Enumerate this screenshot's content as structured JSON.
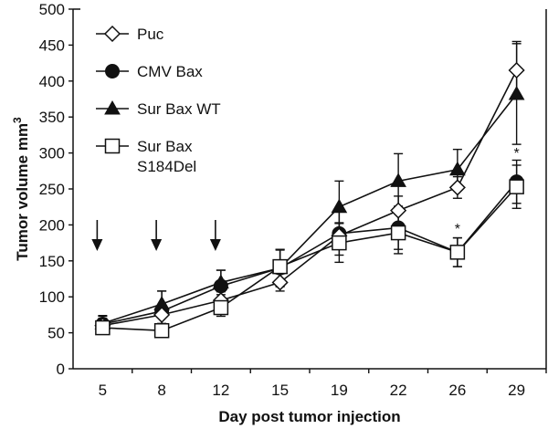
{
  "chart_data": {
    "type": "line",
    "title": "",
    "xlabel": "Day post tumor injection",
    "ylabel": "Tumor volume mm",
    "ylabel_superscript": "3",
    "categories": [
      "5",
      "8",
      "12",
      "15",
      "19",
      "22",
      "26",
      "29"
    ],
    "ylim": [
      0,
      500
    ],
    "yticks": [
      0,
      50,
      100,
      150,
      200,
      250,
      300,
      350,
      400,
      450,
      500
    ],
    "grid": false,
    "legend_position": "top-left",
    "series": [
      {
        "name": "Puc",
        "marker": "diamond-open",
        "values": [
          60,
          75,
          95,
          120,
          185,
          220,
          252,
          415
        ],
        "errors": [
          10,
          12,
          12,
          12,
          18,
          20,
          15,
          40
        ]
      },
      {
        "name": "CMV Bax",
        "marker": "circle-filled",
        "values": [
          62,
          80,
          115,
          140,
          188,
          196,
          162,
          260
        ],
        "errors": [
          12,
          28,
          22,
          25,
          30,
          30,
          20,
          30
        ]
      },
      {
        "name": "Sur Bax WT",
        "marker": "triangle-filled",
        "values": [
          63,
          90,
          120,
          140,
          225,
          261,
          277,
          382
        ],
        "errors": [
          10,
          18,
          17,
          26,
          36,
          38,
          28,
          70
        ]
      },
      {
        "name": "Sur Bax\nS184Del",
        "marker": "square-open",
        "values": [
          57,
          53,
          85,
          142,
          175,
          189,
          162,
          253
        ],
        "errors": [
          8,
          8,
          12,
          24,
          27,
          29,
          20,
          30
        ]
      }
    ],
    "annotations": {
      "arrows_at_days": [
        "5",
        "8",
        "12"
      ],
      "significance_stars": [
        {
          "day": "26",
          "label": "*",
          "value": 198
        },
        {
          "day": "29",
          "label": "*",
          "value": 303
        }
      ]
    }
  }
}
